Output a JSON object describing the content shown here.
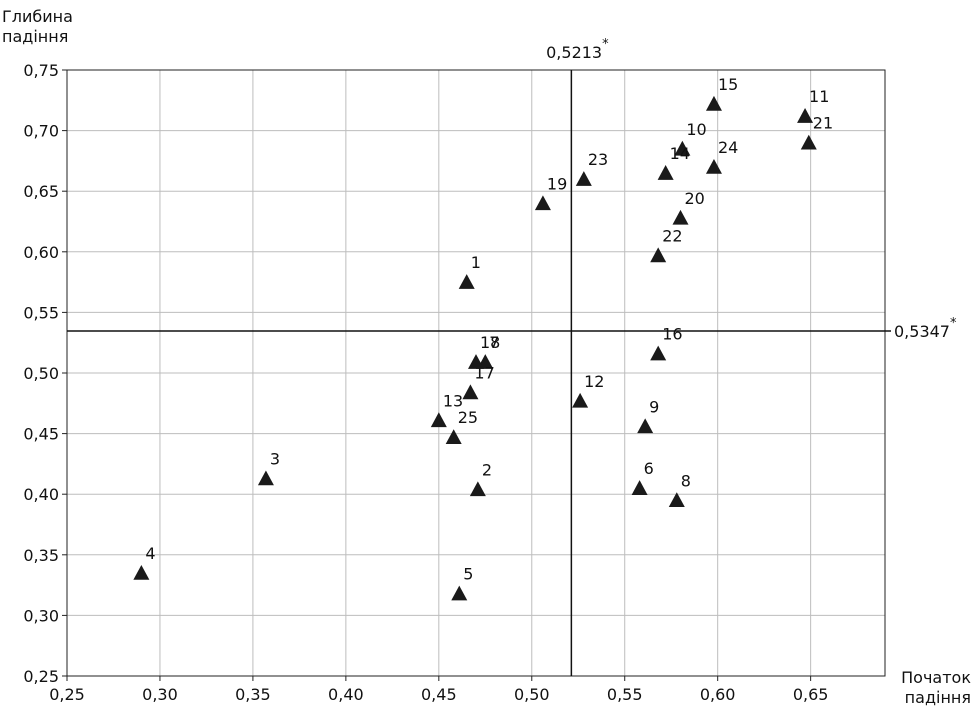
{
  "chart_data": {
    "type": "scatter",
    "title": "",
    "xlabel": "Початок падіння",
    "ylabel": "Глибина падіння",
    "xlim": [
      0.25,
      0.69
    ],
    "ylim": [
      0.25,
      0.75
    ],
    "x_ticks": [
      "0,25",
      "0,30",
      "0,35",
      "0,40",
      "0,45",
      "0,50",
      "0,55",
      "0,60",
      "0,65"
    ],
    "y_ticks": [
      "0,25",
      "0,30",
      "0,35",
      "0,40",
      "0,45",
      "0,50",
      "0,55",
      "0,60",
      "0,65",
      "0,70",
      "0,75"
    ],
    "x_tick_values": [
      0.25,
      0.3,
      0.35,
      0.4,
      0.45,
      0.5,
      0.55,
      0.6,
      0.65
    ],
    "y_tick_values": [
      0.25,
      0.3,
      0.35,
      0.4,
      0.45,
      0.5,
      0.55,
      0.6,
      0.65,
      0.7,
      0.75
    ],
    "grid": true,
    "reference_lines": {
      "vertical": {
        "value": 0.5213,
        "label": "0,5213",
        "mark": "*"
      },
      "horizontal": {
        "value": 0.5347,
        "label": "0,5347",
        "mark": "*"
      }
    },
    "marker": "triangle",
    "points": [
      {
        "label": "1",
        "x": 0.465,
        "y": 0.575
      },
      {
        "label": "2",
        "x": 0.471,
        "y": 0.404
      },
      {
        "label": "3",
        "x": 0.357,
        "y": 0.413
      },
      {
        "label": "4",
        "x": 0.29,
        "y": 0.335
      },
      {
        "label": "5",
        "x": 0.461,
        "y": 0.318
      },
      {
        "label": "6",
        "x": 0.558,
        "y": 0.405
      },
      {
        "label": "7",
        "x": 0.475,
        "y": 0.509
      },
      {
        "label": "8",
        "x": 0.578,
        "y": 0.395
      },
      {
        "label": "9",
        "x": 0.561,
        "y": 0.456
      },
      {
        "label": "10",
        "x": 0.581,
        "y": 0.685
      },
      {
        "label": "11",
        "x": 0.647,
        "y": 0.712
      },
      {
        "label": "12",
        "x": 0.526,
        "y": 0.477
      },
      {
        "label": "13",
        "x": 0.45,
        "y": 0.461
      },
      {
        "label": "14",
        "x": 0.572,
        "y": 0.665
      },
      {
        "label": "15",
        "x": 0.598,
        "y": 0.722
      },
      {
        "label": "16",
        "x": 0.568,
        "y": 0.516
      },
      {
        "label": "17",
        "x": 0.467,
        "y": 0.484
      },
      {
        "label": "18",
        "x": 0.47,
        "y": 0.509
      },
      {
        "label": "19",
        "x": 0.506,
        "y": 0.64
      },
      {
        "label": "20",
        "x": 0.58,
        "y": 0.628
      },
      {
        "label": "21",
        "x": 0.649,
        "y": 0.69
      },
      {
        "label": "22",
        "x": 0.568,
        "y": 0.597
      },
      {
        "label": "23",
        "x": 0.528,
        "y": 0.66
      },
      {
        "label": "24",
        "x": 0.598,
        "y": 0.67
      },
      {
        "label": "25",
        "x": 0.458,
        "y": 0.447
      }
    ]
  }
}
